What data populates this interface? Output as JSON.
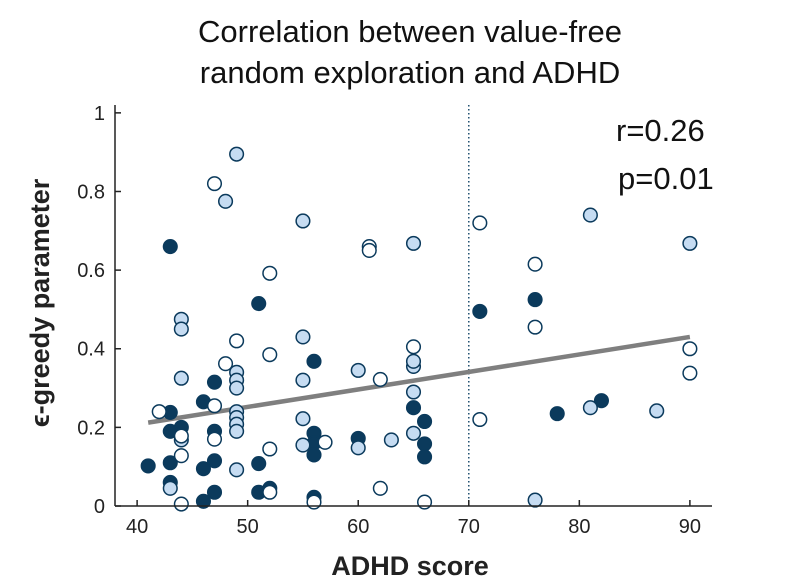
{
  "chart_data": {
    "type": "scatter",
    "title": [
      "Correlation between value-free",
      "random exploration and ADHD"
    ],
    "xlabel": "ADHD score",
    "ylabel": "ϵ-greedy parameter",
    "xlim": [
      38,
      92
    ],
    "ylim": [
      0,
      1.02
    ],
    "xticks": [
      40,
      50,
      60,
      70,
      80,
      90
    ],
    "yticks": [
      0,
      0.2,
      0.4,
      0.6,
      0.8,
      1
    ],
    "xtick_labels": [
      "40",
      "50",
      "60",
      "70",
      "80",
      "90"
    ],
    "ytick_labels": [
      "0",
      "0.2",
      "0.4",
      "0.6",
      "0.8",
      "1"
    ],
    "annotations": {
      "r": "r=0.26",
      "p": "p=0.01"
    },
    "threshold_line": {
      "x": 70,
      "style": "dotted",
      "color": "#1f4e6e"
    },
    "fit_line": {
      "x": [
        41,
        90
      ],
      "y": [
        0.212,
        0.43
      ],
      "color": "#7f7f7f"
    },
    "colors": {
      "dark": "#0b3a5c",
      "light": "#c6dcf2",
      "open": "#ffffff",
      "edge": "#0b3a5c"
    },
    "series": [
      {
        "style": "dark",
        "points": [
          [
            43,
            0.66
          ],
          [
            51,
            0.515
          ],
          [
            71,
            0.495
          ],
          [
            76,
            0.525
          ],
          [
            56,
            0.368
          ],
          [
            47,
            0.315
          ],
          [
            46,
            0.265
          ],
          [
            65,
            0.25
          ],
          [
            43,
            0.238
          ],
          [
            44,
            0.2
          ],
          [
            66,
            0.215
          ],
          [
            78,
            0.235
          ],
          [
            82,
            0.268
          ],
          [
            43,
            0.19
          ],
          [
            47,
            0.19
          ],
          [
            56,
            0.185
          ],
          [
            60,
            0.172
          ],
          [
            56,
            0.16
          ],
          [
            66,
            0.158
          ],
          [
            41,
            0.102
          ],
          [
            43,
            0.11
          ],
          [
            46,
            0.095
          ],
          [
            47,
            0.115
          ],
          [
            51,
            0.108
          ],
          [
            56,
            0.13
          ],
          [
            66,
            0.125
          ],
          [
            43,
            0.06
          ],
          [
            47,
            0.035
          ],
          [
            51,
            0.035
          ],
          [
            52,
            0.045
          ],
          [
            46,
            0.012
          ],
          [
            56,
            0.022
          ]
        ]
      },
      {
        "style": "light",
        "points": [
          [
            49,
            0.895
          ],
          [
            48,
            0.775
          ],
          [
            55,
            0.725
          ],
          [
            81,
            0.74
          ],
          [
            65,
            0.668
          ],
          [
            90,
            0.668
          ],
          [
            44,
            0.475
          ],
          [
            44,
            0.45
          ],
          [
            55,
            0.43
          ],
          [
            65,
            0.355
          ],
          [
            65,
            0.368
          ],
          [
            49,
            0.34
          ],
          [
            49,
            0.32
          ],
          [
            55,
            0.32
          ],
          [
            60,
            0.345
          ],
          [
            44,
            0.325
          ],
          [
            49,
            0.3
          ],
          [
            65,
            0.29
          ],
          [
            49,
            0.24
          ],
          [
            49,
            0.225
          ],
          [
            55,
            0.222
          ],
          [
            49,
            0.208
          ],
          [
            49,
            0.19
          ],
          [
            65,
            0.185
          ],
          [
            81,
            0.25
          ],
          [
            87,
            0.242
          ],
          [
            60,
            0.148
          ],
          [
            63,
            0.168
          ],
          [
            55,
            0.155
          ],
          [
            44,
            0.168
          ],
          [
            49,
            0.092
          ],
          [
            43,
            0.045
          ],
          [
            76,
            0.015
          ]
        ]
      },
      {
        "style": "open",
        "points": [
          [
            47,
            0.82
          ],
          [
            61,
            0.66
          ],
          [
            61,
            0.65
          ],
          [
            71,
            0.72
          ],
          [
            52,
            0.592
          ],
          [
            76,
            0.615
          ],
          [
            76,
            0.455
          ],
          [
            49,
            0.42
          ],
          [
            65,
            0.405
          ],
          [
            52,
            0.385
          ],
          [
            90,
            0.4
          ],
          [
            48,
            0.362
          ],
          [
            90,
            0.338
          ],
          [
            62,
            0.322
          ],
          [
            47,
            0.255
          ],
          [
            42,
            0.24
          ],
          [
            71,
            0.22
          ],
          [
            44,
            0.178
          ],
          [
            47,
            0.17
          ],
          [
            52,
            0.145
          ],
          [
            57,
            0.162
          ],
          [
            44,
            0.128
          ],
          [
            62,
            0.045
          ],
          [
            52,
            0.035
          ],
          [
            44,
            0.005
          ],
          [
            56,
            0.01
          ],
          [
            66,
            0.01
          ]
        ]
      }
    ]
  }
}
